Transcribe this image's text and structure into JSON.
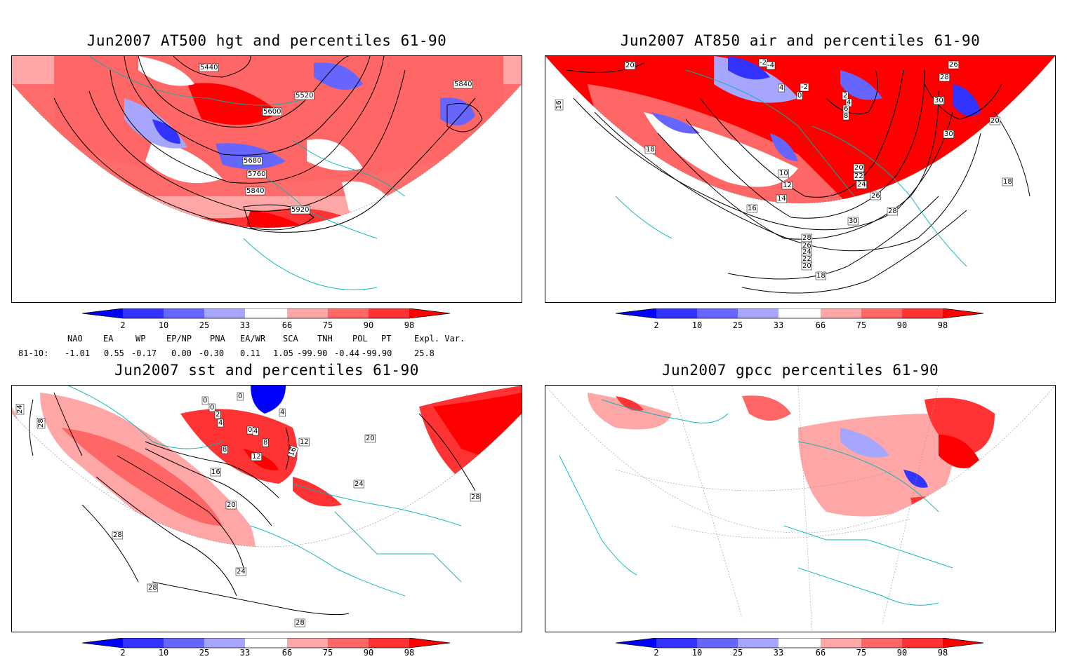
{
  "panels": {
    "tl": {
      "title": "Jun2007 AT500 hgt and percentiles 61-90",
      "contours": [
        "5440",
        "5520",
        "5600",
        "5680",
        "5760",
        "5840",
        "5840",
        "5920"
      ]
    },
    "tr": {
      "title": "Jun2007 AT850 air and percentiles 61-90",
      "contours": [
        "20",
        "-2",
        "-4",
        "4",
        "-2",
        "0",
        "2",
        "4",
        "6",
        "8",
        "28",
        "26",
        "30",
        "30",
        "20",
        "16",
        "18",
        "10",
        "12",
        "14",
        "16",
        "20",
        "22",
        "24",
        "26",
        "28",
        "30",
        "28",
        "26",
        "24",
        "22",
        "20",
        "18",
        "18"
      ]
    },
    "bl": {
      "title": "Jun2007 sst and percentiles 61-90",
      "contours": [
        "24",
        "28",
        "0",
        "0",
        "0",
        "2",
        "4",
        "4",
        "0",
        "8",
        "4",
        "8",
        "12",
        "12",
        "16",
        "16",
        "20",
        "20",
        "24",
        "28",
        "28",
        "24",
        "28",
        "28"
      ]
    },
    "br": {
      "title": "Jun2007 gpcc percentiles 61-90",
      "contours": []
    }
  },
  "colorbar": {
    "ticks": [
      "2",
      "10",
      "25",
      "33",
      "66",
      "75",
      "90",
      "98"
    ],
    "colors": [
      "#0000ff",
      "#3333ff",
      "#6666ff",
      "#a6a6ff",
      "#ffffff",
      "#ffa6a6",
      "#ff6666",
      "#ff3333",
      "#ff0000"
    ]
  },
  "indices": {
    "headers": [
      "NAO",
      "EA",
      "WP",
      "EP/NP",
      "PNA",
      "EA/WR",
      "SCA",
      "TNH",
      "POL",
      "PT",
      "Expl. Var."
    ],
    "row_label": "81-10:",
    "values": [
      "-1.01",
      "0.55",
      "-0.17",
      "0.00",
      "-0.30",
      "0.11",
      "1.05",
      "-99.90",
      "-0.44",
      "-99.90",
      "25.8"
    ]
  }
}
